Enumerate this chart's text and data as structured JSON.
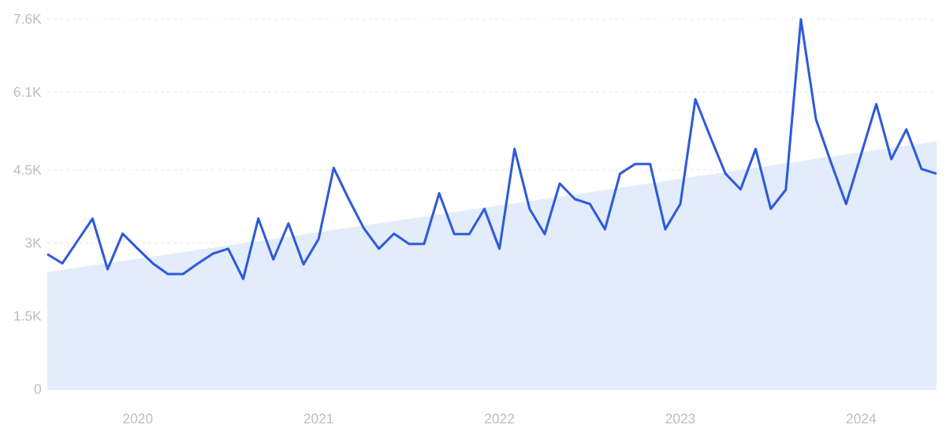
{
  "chart_data": {
    "type": "line",
    "x": [
      "2019-07",
      "2019-08",
      "2019-09",
      "2019-10",
      "2019-11",
      "2019-12",
      "2020-01",
      "2020-02",
      "2020-03",
      "2020-04",
      "2020-05",
      "2020-06",
      "2020-07",
      "2020-08",
      "2020-09",
      "2020-10",
      "2020-11",
      "2020-12",
      "2021-01",
      "2021-02",
      "2021-03",
      "2021-04",
      "2021-05",
      "2021-06",
      "2021-07",
      "2021-08",
      "2021-09",
      "2021-10",
      "2021-11",
      "2021-12",
      "2022-01",
      "2022-02",
      "2022-03",
      "2022-04",
      "2022-05",
      "2022-06",
      "2022-07",
      "2022-08",
      "2022-09",
      "2022-10",
      "2022-11",
      "2022-12",
      "2023-01",
      "2023-02",
      "2023-03",
      "2023-04",
      "2023-05",
      "2023-06",
      "2023-07",
      "2023-08",
      "2023-09",
      "2023-10",
      "2023-11",
      "2023-12",
      "2024-01",
      "2024-02",
      "2024-03",
      "2024-04",
      "2024-05",
      "2024-06"
    ],
    "series": [
      {
        "type": "area",
        "color": "#e2ecfb",
        "x": [
          "2019-07",
          "2024-06"
        ],
        "values": [
          2400,
          5090
        ]
      },
      {
        "color": "#2f5bd8",
        "values": [
          2770,
          2580,
          3040,
          3500,
          2460,
          3190,
          2880,
          2580,
          2360,
          2360,
          2580,
          2780,
          2880,
          2260,
          3500,
          2660,
          3400,
          2560,
          3080,
          4540,
          3900,
          3300,
          2880,
          3190,
          2980,
          2980,
          4020,
          3180,
          3180,
          3700,
          2880,
          4930,
          3700,
          3180,
          4220,
          3900,
          3800,
          3280,
          4420,
          4620,
          4620,
          3280,
          3800,
          5950,
          5170,
          4420,
          4100,
          4930,
          3700,
          4090,
          7590,
          5540,
          4650,
          3800,
          4820,
          5850,
          4720,
          5330,
          4520,
          4420
        ]
      }
    ],
    "xlim": [
      "2019-07",
      "2024-06"
    ],
    "xticks": [
      {
        "value": "2020-01",
        "label": "2020"
      },
      {
        "value": "2021-01",
        "label": "2021"
      },
      {
        "value": "2022-01",
        "label": "2022"
      },
      {
        "value": "2023-01",
        "label": "2023"
      },
      {
        "value": "2024-01",
        "label": "2024"
      }
    ],
    "ylim": [
      0,
      7600
    ],
    "yticks": [
      0,
      {
        "value": 1500,
        "label": "1.5K"
      },
      {
        "value": 3000,
        "label": "3K"
      },
      {
        "value": 4500,
        "label": "4.5K"
      },
      {
        "value": 6100,
        "label": "6.1K"
      },
      {
        "value": 7600,
        "label": "7.6K"
      }
    ],
    "grid": "y"
  }
}
